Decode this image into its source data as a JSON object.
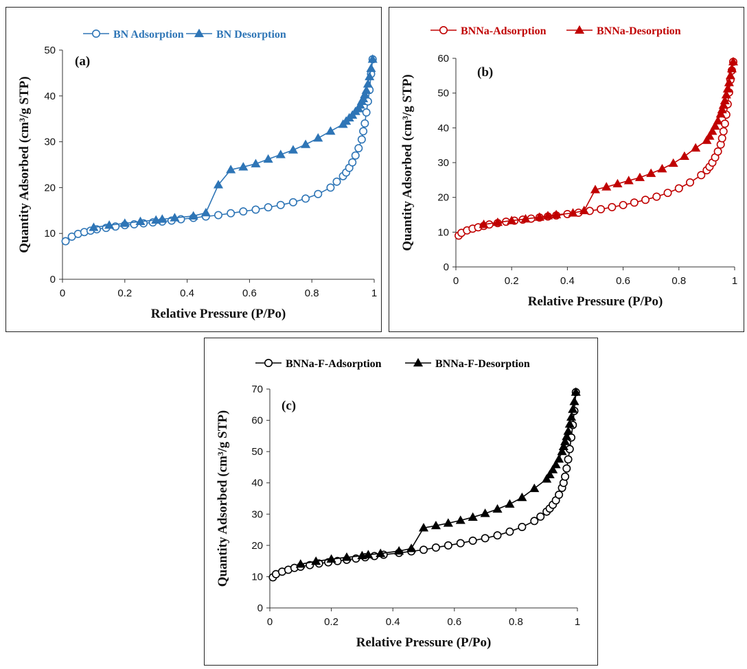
{
  "chart_data": [
    {
      "type": "line",
      "panel_label": "(a)",
      "xlabel": "Relative Pressure (P/Po)",
      "ylabel": "Quantity Adsorbed (cm³/g STP)",
      "xlim": [
        0,
        1
      ],
      "ylim": [
        0,
        50
      ],
      "xticks": [
        "0",
        "0.2",
        "0.4",
        "0.6",
        "0.8",
        "1"
      ],
      "yticks": [
        "0",
        "10",
        "20",
        "30",
        "40",
        "50"
      ],
      "grid": false,
      "legend_position": "top",
      "color": "#2E75B6",
      "series": [
        {
          "name": "BN Adsorption",
          "marker": "open-circle",
          "x": [
            0.01,
            0.03,
            0.05,
            0.07,
            0.09,
            0.11,
            0.14,
            0.17,
            0.2,
            0.23,
            0.26,
            0.29,
            0.32,
            0.35,
            0.38,
            0.42,
            0.46,
            0.5,
            0.54,
            0.58,
            0.62,
            0.66,
            0.7,
            0.74,
            0.78,
            0.82,
            0.86,
            0.88,
            0.9,
            0.91,
            0.92,
            0.93,
            0.94,
            0.95,
            0.96,
            0.965,
            0.97,
            0.975,
            0.98,
            0.985,
            0.99,
            0.995
          ],
          "y": [
            8.3,
            9.3,
            9.9,
            10.3,
            10.6,
            10.9,
            11.2,
            11.5,
            11.8,
            12.0,
            12.2,
            12.4,
            12.6,
            12.8,
            13.1,
            13.4,
            13.7,
            14.0,
            14.4,
            14.8,
            15.2,
            15.7,
            16.2,
            16.8,
            17.6,
            18.6,
            20.0,
            21.3,
            22.5,
            23.3,
            24.3,
            25.5,
            27.0,
            28.6,
            30.5,
            32.3,
            34.0,
            36.4,
            38.8,
            41.3,
            44.8,
            48.0
          ]
        },
        {
          "name": "BN Desorption",
          "marker": "filled-triangle",
          "x": [
            0.995,
            0.99,
            0.985,
            0.98,
            0.975,
            0.97,
            0.965,
            0.96,
            0.955,
            0.95,
            0.94,
            0.93,
            0.92,
            0.91,
            0.9,
            0.86,
            0.82,
            0.78,
            0.74,
            0.7,
            0.66,
            0.62,
            0.58,
            0.54,
            0.5,
            0.46,
            0.42,
            0.36,
            0.32,
            0.3,
            0.25,
            0.2,
            0.15,
            0.1
          ],
          "y": [
            48.0,
            46.0,
            44.2,
            42.6,
            41.2,
            40.3,
            39.4,
            38.8,
            38.0,
            37.2,
            36.6,
            35.8,
            35.2,
            34.5,
            33.8,
            32.3,
            30.8,
            29.4,
            28.2,
            27.2,
            26.2,
            25.2,
            24.5,
            23.9,
            20.6,
            14.5,
            13.8,
            13.4,
            13.1,
            12.9,
            12.6,
            12.2,
            11.8,
            11.3
          ]
        }
      ]
    },
    {
      "type": "line",
      "panel_label": "(b)",
      "xlabel": "Relative Pressure (P/Po)",
      "ylabel": "Quantity Adsorbed (cm³/g STP)",
      "xlim": [
        0,
        1
      ],
      "ylim": [
        0,
        60
      ],
      "xticks": [
        "0",
        "0.2",
        "0.4",
        "0.6",
        "0.8",
        "1"
      ],
      "yticks": [
        "0",
        "10",
        "20",
        "30",
        "40",
        "50",
        "60"
      ],
      "grid": false,
      "legend_position": "top",
      "color": "#C00000",
      "series": [
        {
          "name": "BNNa-Adsorption",
          "marker": "open-circle",
          "x": [
            0.01,
            0.02,
            0.04,
            0.06,
            0.08,
            0.1,
            0.12,
            0.15,
            0.18,
            0.21,
            0.24,
            0.27,
            0.3,
            0.33,
            0.36,
            0.4,
            0.44,
            0.48,
            0.52,
            0.56,
            0.6,
            0.64,
            0.68,
            0.72,
            0.76,
            0.8,
            0.84,
            0.88,
            0.9,
            0.91,
            0.92,
            0.93,
            0.94,
            0.95,
            0.955,
            0.96,
            0.965,
            0.97,
            0.975,
            0.98,
            0.985,
            0.99,
            0.995
          ],
          "y": [
            9.0,
            9.8,
            10.5,
            11.0,
            11.4,
            11.8,
            12.2,
            12.6,
            13.0,
            13.3,
            13.6,
            13.9,
            14.2,
            14.5,
            14.8,
            15.2,
            15.6,
            16.1,
            16.6,
            17.2,
            17.8,
            18.5,
            19.3,
            20.2,
            21.3,
            22.6,
            24.3,
            26.4,
            27.8,
            28.8,
            30.0,
            31.5,
            33.2,
            35.2,
            37.0,
            39.0,
            41.2,
            43.8,
            46.8,
            50.2,
            53.8,
            56.5,
            59.0
          ]
        },
        {
          "name": "BNNa-Desorption",
          "marker": "filled-triangle",
          "x": [
            0.995,
            0.99,
            0.985,
            0.98,
            0.975,
            0.97,
            0.965,
            0.96,
            0.955,
            0.95,
            0.94,
            0.93,
            0.92,
            0.91,
            0.9,
            0.86,
            0.82,
            0.78,
            0.74,
            0.7,
            0.66,
            0.62,
            0.58,
            0.54,
            0.5,
            0.46,
            0.42,
            0.36,
            0.33,
            0.3,
            0.25,
            0.2,
            0.15,
            0.1
          ],
          "y": [
            59.0,
            57.0,
            55.0,
            53.0,
            51.2,
            49.5,
            47.8,
            46.5,
            45.2,
            44.0,
            42.0,
            40.5,
            39.0,
            37.6,
            36.4,
            34.2,
            31.8,
            29.8,
            28.2,
            26.9,
            25.7,
            24.8,
            23.9,
            23.0,
            22.2,
            16.2,
            15.5,
            15.0,
            14.7,
            14.3,
            13.8,
            13.3,
            12.8,
            12.2
          ]
        }
      ]
    },
    {
      "type": "line",
      "panel_label": "(c)",
      "xlabel": "Relative Pressure (P/Po)",
      "ylabel": "Quantity Adsorbed (cm³/g STP)",
      "xlim": [
        0,
        1
      ],
      "ylim": [
        0,
        70
      ],
      "xticks": [
        "0",
        "0.2",
        "0.4",
        "0.6",
        "0.8",
        "1"
      ],
      "yticks": [
        "0",
        "10",
        "20",
        "30",
        "40",
        "50",
        "60",
        "70"
      ],
      "grid": false,
      "legend_position": "top",
      "color": "#000000",
      "series": [
        {
          "name": "BNNa-F-Adsorption",
          "marker": "open-circle",
          "x": [
            0.01,
            0.02,
            0.04,
            0.06,
            0.08,
            0.1,
            0.13,
            0.16,
            0.19,
            0.22,
            0.25,
            0.28,
            0.31,
            0.34,
            0.37,
            0.42,
            0.46,
            0.5,
            0.54,
            0.58,
            0.62,
            0.66,
            0.7,
            0.74,
            0.78,
            0.82,
            0.86,
            0.88,
            0.9,
            0.91,
            0.92,
            0.93,
            0.94,
            0.95,
            0.955,
            0.96,
            0.965,
            0.97,
            0.975,
            0.98,
            0.985,
            0.99,
            0.995
          ],
          "y": [
            9.8,
            10.8,
            11.6,
            12.2,
            12.8,
            13.2,
            13.7,
            14.2,
            14.6,
            15.0,
            15.4,
            15.8,
            16.2,
            16.6,
            17.0,
            17.6,
            18.1,
            18.6,
            19.3,
            20.0,
            20.7,
            21.5,
            22.3,
            23.2,
            24.4,
            25.9,
            27.8,
            29.2,
            30.8,
            31.8,
            33.0,
            34.4,
            36.2,
            38.4,
            40.0,
            42.0,
            44.6,
            47.5,
            50.8,
            54.5,
            58.5,
            63.0,
            69.0
          ]
        },
        {
          "name": "BNNa-F-Desorption",
          "marker": "filled-triangle",
          "x": [
            0.995,
            0.99,
            0.985,
            0.98,
            0.975,
            0.97,
            0.965,
            0.96,
            0.955,
            0.95,
            0.94,
            0.93,
            0.92,
            0.91,
            0.9,
            0.86,
            0.82,
            0.78,
            0.74,
            0.7,
            0.66,
            0.62,
            0.58,
            0.54,
            0.5,
            0.46,
            0.42,
            0.36,
            0.32,
            0.3,
            0.25,
            0.2,
            0.15,
            0.1
          ],
          "y": [
            69.0,
            66.0,
            63.5,
            61.0,
            58.8,
            56.5,
            54.8,
            53.2,
            51.6,
            50.0,
            47.6,
            45.8,
            44.2,
            42.6,
            41.2,
            38.2,
            35.3,
            33.2,
            31.6,
            30.2,
            29.0,
            28.0,
            27.1,
            26.3,
            25.6,
            19.0,
            18.2,
            17.4,
            17.0,
            16.7,
            16.2,
            15.6,
            14.9,
            14.0
          ]
        }
      ]
    }
  ]
}
